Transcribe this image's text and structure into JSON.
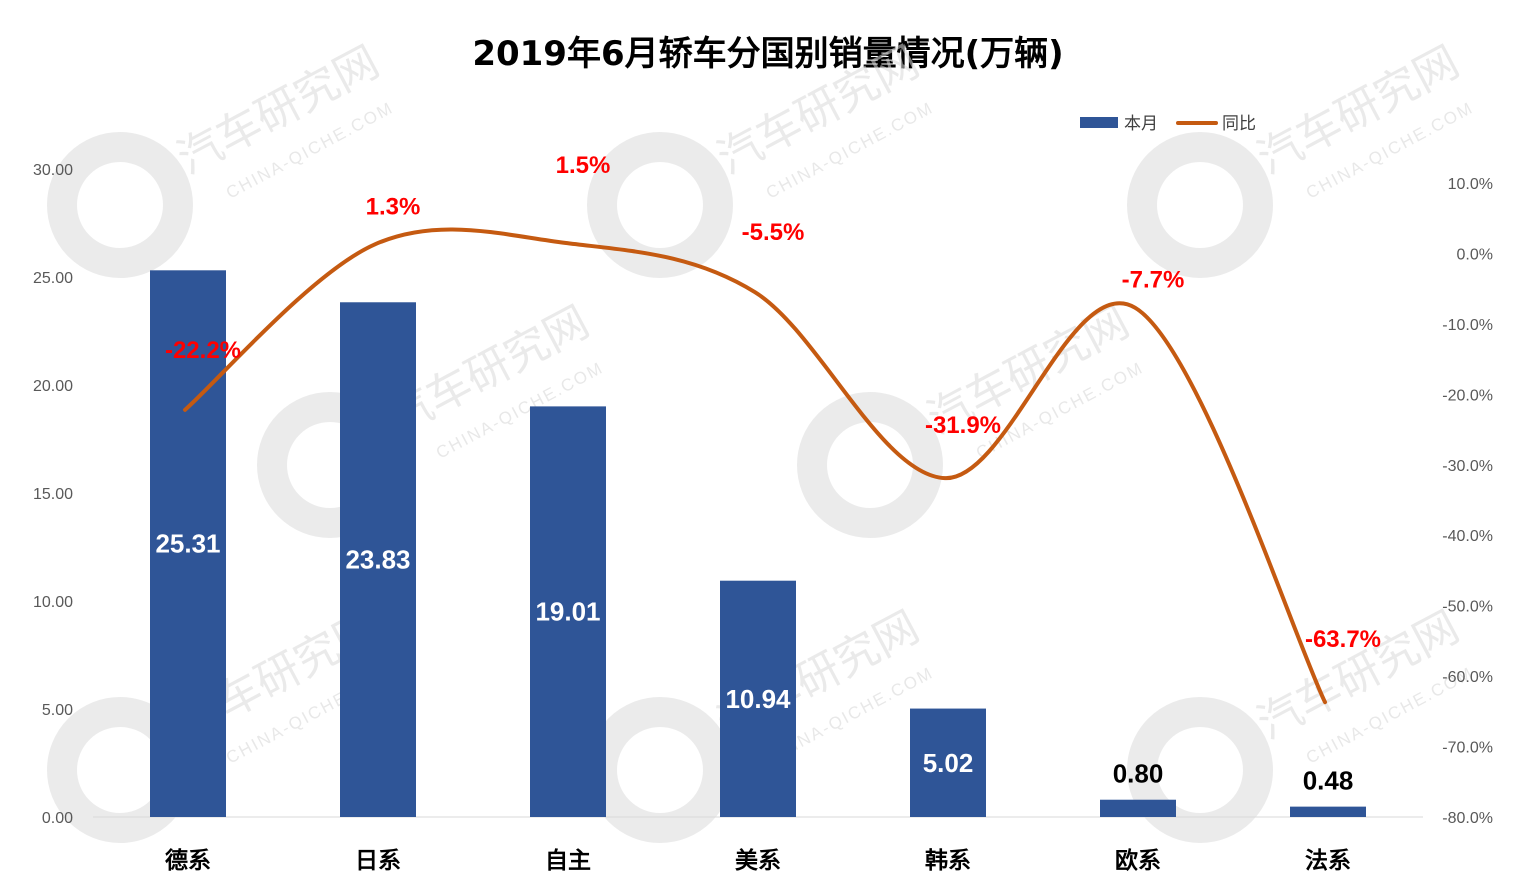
{
  "chart_data": {
    "type": "bar",
    "title": "2019年6月轿车分国别销量情况(万辆)",
    "categories": [
      "德系",
      "日系",
      "自主",
      "美系",
      "韩系",
      "欧系",
      "法系"
    ],
    "series": [
      {
        "name": "本月",
        "type": "bar",
        "axis": "left",
        "color": "#2f5597",
        "values": [
          25.31,
          23.83,
          19.01,
          10.94,
          5.02,
          0.8,
          0.48
        ],
        "labels": [
          "25.31",
          "23.83",
          "19.01",
          "10.94",
          "5.02",
          "0.80",
          "0.48"
        ]
      },
      {
        "name": "同比",
        "type": "line",
        "axis": "right",
        "color": "#c55a11",
        "values": [
          -22.2,
          1.3,
          1.5,
          -5.5,
          -31.9,
          -7.7,
          -63.7
        ],
        "labels": [
          "-22.2%",
          "1.3%",
          "1.5%",
          "-5.5%",
          "-31.9%",
          "-7.7%",
          "-63.7%"
        ]
      }
    ],
    "y_left": {
      "min": 0,
      "max": 30,
      "ticks": [
        "0.00",
        "5.00",
        "10.00",
        "15.00",
        "20.00",
        "25.00",
        "30.00"
      ]
    },
    "y_right": {
      "min": -80,
      "max": 10,
      "ticks": [
        "-80.0%",
        "-70.0%",
        "-60.0%",
        "-50.0%",
        "-40.0%",
        "-30.0%",
        "-20.0%",
        "-10.0%",
        "0.0%",
        "10.0%"
      ]
    },
    "legend": {
      "position": "top-right",
      "entries": [
        "本月",
        "同比"
      ]
    },
    "grid": false
  },
  "watermark": {
    "text": "汽车研究网",
    "sub": "CHINA-QICHE.COM"
  }
}
